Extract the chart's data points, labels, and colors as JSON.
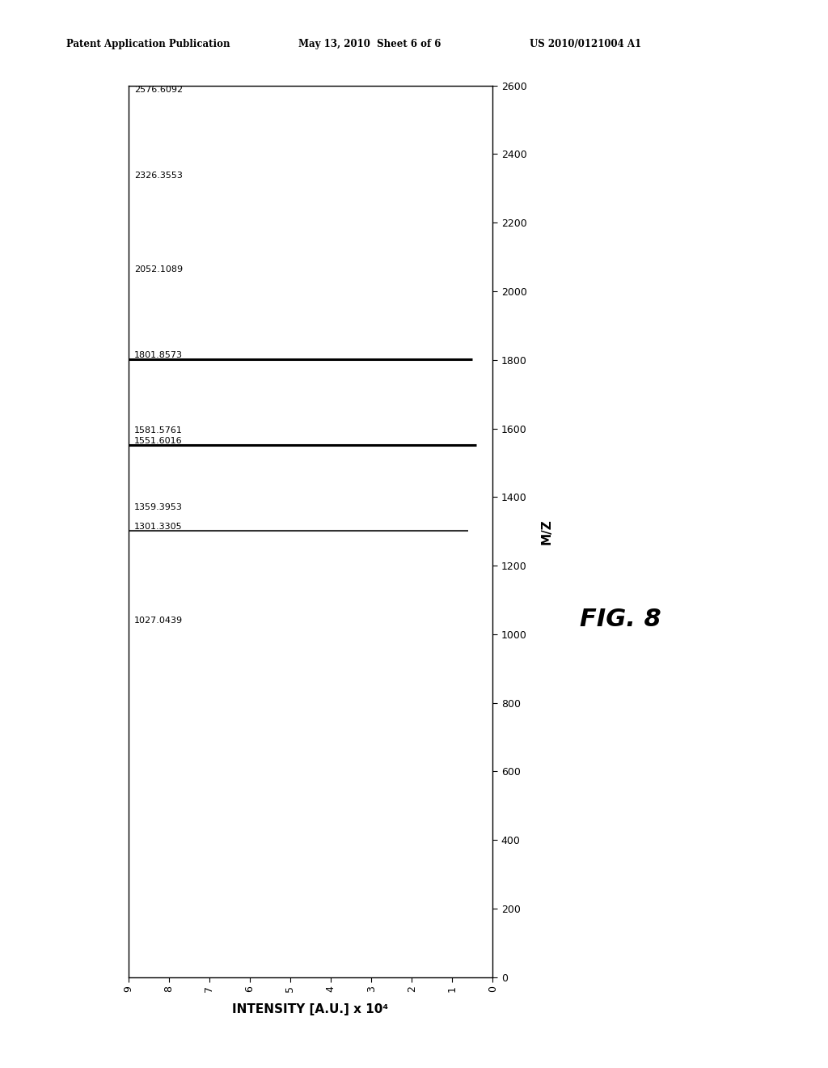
{
  "title_header_left": "Patent Application Publication",
  "title_header_mid": "May 13, 2010  Sheet 6 of 6",
  "title_header_right": "US 2010/0121004 A1",
  "fig_label": "FIG. 8",
  "ylabel_rotated": "M/Z",
  "xlabel": "INTENSITY [A.U.] x 10⁴",
  "xlim": [
    9,
    0
  ],
  "ylim": [
    0,
    2600
  ],
  "yticks": [
    0,
    200,
    400,
    600,
    800,
    1000,
    1200,
    1400,
    1600,
    1800,
    2000,
    2200,
    2400,
    2600
  ],
  "xticks": [
    9,
    8,
    7,
    6,
    5,
    4,
    3,
    2,
    1,
    0
  ],
  "peaks": [
    {
      "mz": 2576.6092,
      "intensity": 9.0,
      "label": "2576.6092",
      "style": "dashdot",
      "linewidth": 0.8,
      "color": "#888888"
    },
    {
      "mz": 2326.3553,
      "intensity": 9.0,
      "label": "2326.3553",
      "style": "dashdot",
      "linewidth": 0.8,
      "color": "#888888"
    },
    {
      "mz": 2052.1089,
      "intensity": 9.0,
      "label": "2052.1089",
      "style": "dashdot",
      "linewidth": 0.8,
      "color": "#888888"
    },
    {
      "mz": 1801.8573,
      "intensity": 0.5,
      "label": "1801.8573",
      "style": "solid",
      "linewidth": 2.2,
      "color": "#000000"
    },
    {
      "mz": 1581.5761,
      "intensity": 9.0,
      "label": "1581.5761",
      "style": "dashdot",
      "linewidth": 0.8,
      "color": "#888888"
    },
    {
      "mz": 1551.6016,
      "intensity": 0.4,
      "label": "1551.6016",
      "style": "solid",
      "linewidth": 2.2,
      "color": "#000000"
    },
    {
      "mz": 1359.3953,
      "intensity": 9.0,
      "label": "1359.3953",
      "style": "dashdot",
      "linewidth": 0.8,
      "color": "#888888"
    },
    {
      "mz": 1301.3305,
      "intensity": 0.6,
      "label": "1301.3305",
      "style": "solid",
      "linewidth": 1.5,
      "color": "#333333"
    },
    {
      "mz": 1027.0439,
      "intensity": 9.0,
      "label": "1027.0439",
      "style": "dashdot",
      "linewidth": 0.8,
      "color": "#888888"
    }
  ],
  "background_color": "#ffffff",
  "plot_bg_color": "#ffffff",
  "border_color": "#000000"
}
